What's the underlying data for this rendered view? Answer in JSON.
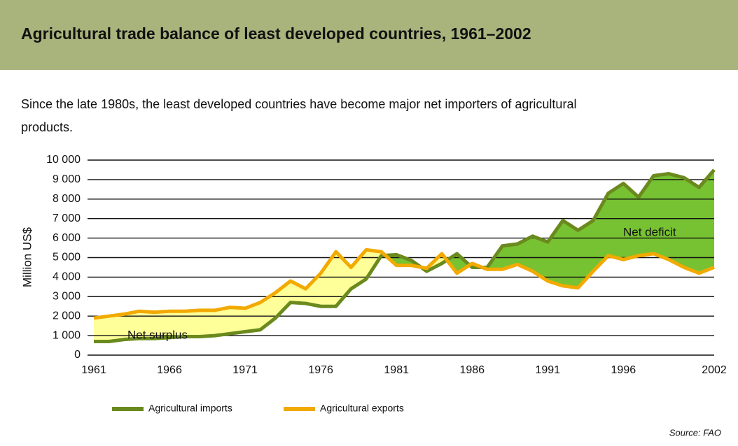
{
  "chart_data": {
    "type": "line",
    "title": "Agricultural trade balance of least developed countries, 1961–2002",
    "subtitle": [
      "Since the late 1980s, the least developed countries have become major net importers of agricultural",
      "products."
    ],
    "y_label": "Million US$",
    "source": "Source: FAO",
    "annotations": [
      "Net surplus",
      "Net deficit"
    ],
    "x": [
      1961,
      1962,
      1963,
      1964,
      1965,
      1966,
      1967,
      1968,
      1969,
      1970,
      1971,
      1972,
      1973,
      1974,
      1975,
      1976,
      1977,
      1978,
      1979,
      1980,
      1981,
      1982,
      1983,
      1984,
      1985,
      1986,
      1987,
      1988,
      1989,
      1990,
      1991,
      1992,
      1993,
      1994,
      1995,
      1996,
      1997,
      1998,
      1999,
      2000,
      2001,
      2002
    ],
    "series": [
      {
        "name": "Agricultural imports",
        "color": "#6b8a1e",
        "values": [
          700,
          700,
          800,
          850,
          850,
          900,
          950,
          950,
          1000,
          1100,
          1200,
          1300,
          1900,
          2700,
          2650,
          2500,
          2500,
          3400,
          3900,
          5100,
          5150,
          4850,
          4300,
          4700,
          5200,
          4500,
          4500,
          5600,
          5700,
          6100,
          5800,
          6900,
          6400,
          6900,
          8300,
          8800,
          8100,
          9200,
          9300,
          9100,
          8600,
          9500
        ]
      },
      {
        "name": "Agricultural exports",
        "color": "#f2aa00",
        "values": [
          1900,
          2000,
          2100,
          2250,
          2200,
          2250,
          2250,
          2300,
          2300,
          2450,
          2400,
          2700,
          3200,
          3800,
          3400,
          4200,
          5300,
          4500,
          5400,
          5300,
          4600,
          4600,
          4450,
          5200,
          4200,
          4700,
          4400,
          4400,
          4650,
          4300,
          3800,
          3550,
          3450,
          4300,
          5100,
          4900,
          5100,
          5200,
          4900,
          4500,
          4200,
          4500
        ]
      }
    ],
    "surplus_color": "#ffff99",
    "deficit_color": "#77c232",
    "xlim": [
      1961,
      2002
    ],
    "xticks": [
      1961,
      1966,
      1971,
      1976,
      1981,
      1986,
      1991,
      1996,
      2002
    ],
    "ylim": [
      0,
      10000
    ],
    "yticks": [
      0,
      {
        "value": 1000,
        "label": "1 000"
      },
      {
        "value": 2000,
        "label": "2 000"
      },
      {
        "value": 3000,
        "label": "3 000"
      },
      {
        "value": 4000,
        "label": "4 000"
      },
      {
        "value": 5000,
        "label": "5 000"
      },
      {
        "value": 6000,
        "label": "6 000"
      },
      {
        "value": 7000,
        "label": "7 000"
      },
      {
        "value": 8000,
        "label": "8 000"
      },
      {
        "value": 9000,
        "label": "9 000"
      },
      {
        "value": 10000,
        "label": "10 000"
      }
    ],
    "grid": true
  }
}
